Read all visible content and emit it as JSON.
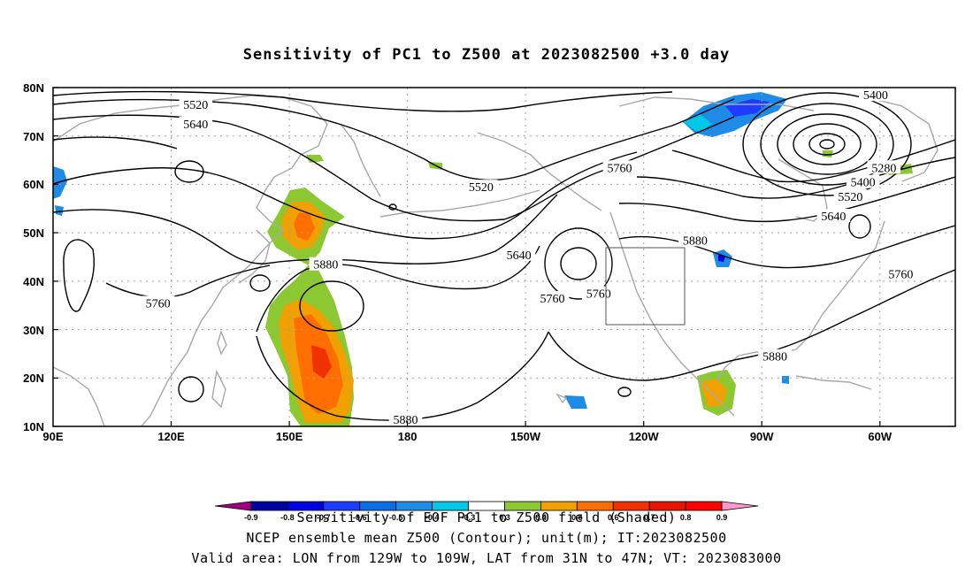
{
  "title": "Sensitivity of PC1 to Z500 at 2023082500 +3.0 day",
  "captions": [
    "Sensitivity of EOF PC1 to Z500 field (Shaded)",
    "NCEP ensemble mean Z500 (Contour); unit(m); IT:2023082500",
    "Valid area: LON from 129W to 109W, LAT from 31N to 47N; VT: 2023083000"
  ],
  "lat_ticks": [
    "80N",
    "70N",
    "60N",
    "50N",
    "40N",
    "30N",
    "20N",
    "10N"
  ],
  "lon_ticks": [
    "90E",
    "120E",
    "150E",
    "180",
    "150W",
    "120W",
    "90W",
    "60W"
  ],
  "contour_labels": [
    {
      "text": "5400",
      "lon": -74,
      "lat": 78.5
    },
    {
      "text": "5520",
      "lon": 124,
      "lat": 76.5
    },
    {
      "text": "5640",
      "lon": 124,
      "lat": 72.5
    },
    {
      "text": "5760",
      "lon": -135,
      "lat": 63.5
    },
    {
      "text": "5280",
      "lon": -72,
      "lat": 63.5
    },
    {
      "text": "5400",
      "lon": -77,
      "lat": 60.5
    },
    {
      "text": "5520",
      "lon": -168,
      "lat": 59.5
    },
    {
      "text": "5520",
      "lon": -80,
      "lat": 57.5
    },
    {
      "text": "5640",
      "lon": -84,
      "lat": 53.5
    },
    {
      "text": "5880",
      "lon": -117,
      "lat": 48.5
    },
    {
      "text": "5640",
      "lon": -159,
      "lat": 45.5
    },
    {
      "text": "5880",
      "lon": 155,
      "lat": 43.5
    },
    {
      "text": "5760",
      "lon": -68,
      "lat": 41.5
    },
    {
      "text": "5760",
      "lon": -151,
      "lat": 36.5
    },
    {
      "text": "5760",
      "lon": -140,
      "lat": 37.5
    },
    {
      "text": "5760",
      "lon": 115,
      "lat": 35.5
    },
    {
      "text": "5880",
      "lon": -98,
      "lat": 24.5
    },
    {
      "text": "5880",
      "lon": 174,
      "lat": 11.5
    }
  ],
  "colorbar": {
    "labels": [
      "-0.9",
      "-0.8",
      "-0.7",
      "-0.6",
      "-0.5",
      "-0.4",
      "-0.3",
      "0.3",
      "0.4",
      "0.5",
      "0.6",
      "0.7",
      "0.8",
      "0.9"
    ],
    "colors": [
      "#a0007f",
      "#0000a0",
      "#0000e0",
      "#1e3cff",
      "#0a6ee6",
      "#1e8ce6",
      "#00c8e6",
      "#ffffff",
      "#8cc832",
      "#f0a000",
      "#ff6e00",
      "#f03200",
      "#e61400",
      "#ff0000",
      "#ff99cc"
    ]
  }
}
